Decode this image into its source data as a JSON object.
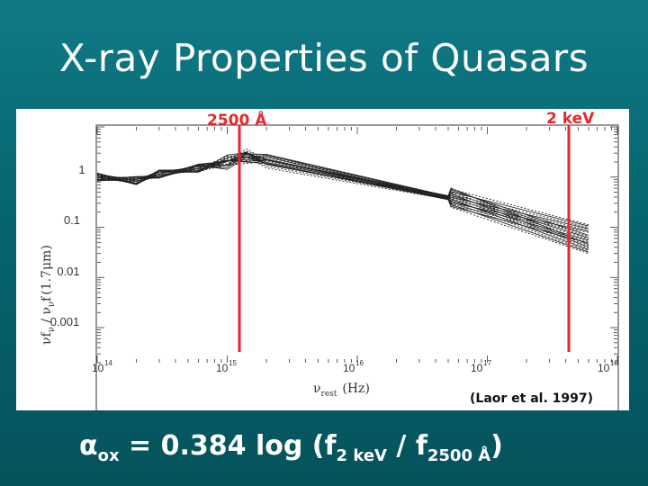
{
  "slide": {
    "title": "X-ray Properties of Quasars",
    "citation": "(Laor et al. 1997)",
    "equation": {
      "alpha": "α",
      "alpha_sub": "ox",
      "rest": " = 0.384 log (f",
      "f2_sub": "2 keV",
      "slash": " / f",
      "f2500_sub": "2500 Å",
      "close": ")"
    }
  },
  "figure": {
    "marker_left": "2500 Å",
    "marker_right": "2 keV",
    "marker_color": "#e8262b",
    "y_tick_labels": [
      "1",
      "0.1",
      "0.01",
      "0.001"
    ],
    "x_tick_base": "10",
    "x_tick_exponents": [
      "14",
      "15",
      "16",
      "17",
      "18"
    ],
    "y_label": {
      "nu": "ν",
      "f": "f",
      "nu_sub": "ν",
      "mid": " / ν",
      "sub2": "ν",
      "f2": "f",
      "tail": "(1.7μm)"
    },
    "x_label": {
      "nu": "ν",
      "sub": "rest",
      "unit": "(Hz)"
    }
  },
  "chart_data": {
    "type": "line",
    "xscale": "log",
    "yscale": "log",
    "xlim": [
      100000000000000.0,
      1e+18
    ],
    "ylim": [
      0.0002,
      10
    ],
    "ylabel": "νf_ν / νf_ν(1.7μm)",
    "xlabel": "ν_rest (Hz)",
    "markers": [
      {
        "label": "2500 Å",
        "x": 1200000000000000.0
      },
      {
        "label": "2 keV",
        "x": 4.8e+17
      }
    ],
    "series_shapes": {
      "optical_uv": [
        {
          "x": 100000000000000.0,
          "y": 1.0
        },
        {
          "x": 200000000000000.0,
          "y": 0.85
        },
        {
          "x": 300000000000000.0,
          "y": 1.15
        },
        {
          "x": 600000000000000.0,
          "y": 1.5
        },
        {
          "x": 1000000000000000.0,
          "y": 2.0
        },
        {
          "x": 1400000000000000.0,
          "y": 2.6
        },
        {
          "x": 2000000000000000.0,
          "y": 2.1
        }
      ],
      "xray_start": {
        "x": 5e+16,
        "y": [
          0.25,
          0.6
        ]
      },
      "xray_end": {
        "x": 6e+17,
        "y": [
          0.03,
          0.12
        ]
      }
    },
    "curve_count": 22
  }
}
